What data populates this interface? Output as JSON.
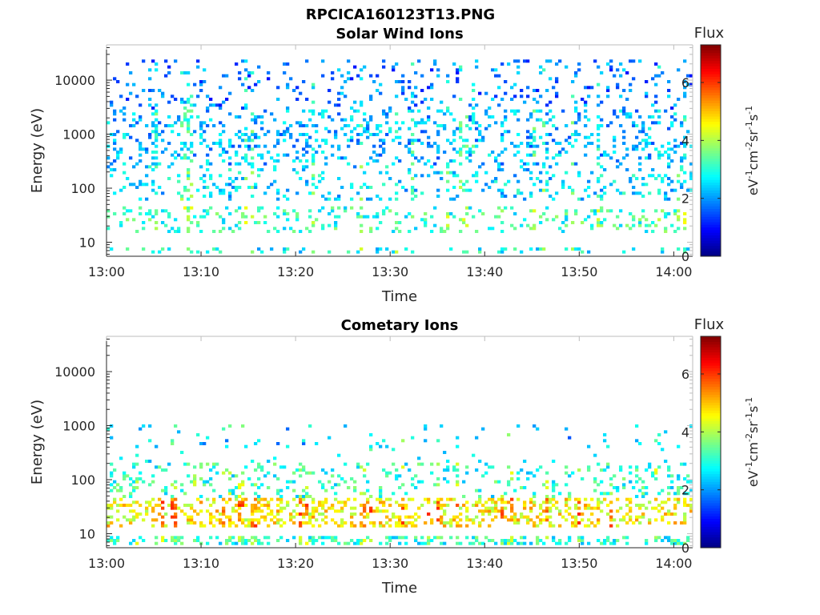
{
  "figure": {
    "filename_title": "RPCICA160123T13.PNG"
  },
  "chart_data": [
    {
      "type": "heatmap",
      "title": "Solar Wind Ions",
      "xlabel": "Time",
      "ylabel": "Energy (eV)",
      "x_range": [
        "13:00",
        "14:02"
      ],
      "x_ticks": [
        "13:00",
        "13:10",
        "13:20",
        "13:30",
        "13:40",
        "13:50",
        "14:00"
      ],
      "y_scale": "log",
      "y_range": [
        5.5,
        45000
      ],
      "y_ticks": [
        10,
        100,
        1000,
        10000
      ],
      "y_tick_labels": [
        "10",
        "100",
        "1000",
        "10000"
      ],
      "colorbar": {
        "label": "Flux",
        "units": "eV-1cm-2sr-1s-1",
        "range": [
          0,
          7.3
        ],
        "ticks": [
          0,
          2,
          4,
          6
        ],
        "colormap": "jet"
      },
      "band_profile": [
        {
          "energy_min": 6,
          "energy_max": 8,
          "flux_typ": 2.8
        },
        {
          "energy_min": 15,
          "energy_max": 45,
          "flux_typ": 3.1
        },
        {
          "energy_min": 60,
          "energy_max": 260,
          "flux_typ": 2.5
        },
        {
          "energy_min": 260,
          "energy_max": 3000,
          "flux_typ": 2.2
        },
        {
          "energy_min": 3000,
          "energy_max": 25000,
          "flux_typ": 1.8
        }
      ]
    },
    {
      "type": "heatmap",
      "title": "Cometary Ions",
      "xlabel": "Time",
      "ylabel": "Energy (eV)",
      "x_range": [
        "13:00",
        "14:02"
      ],
      "x_ticks": [
        "13:00",
        "13:10",
        "13:20",
        "13:30",
        "13:40",
        "13:50",
        "14:00"
      ],
      "y_scale": "log",
      "y_range": [
        5.5,
        45000
      ],
      "y_ticks": [
        10,
        100,
        1000,
        10000
      ],
      "y_tick_labels": [
        "10",
        "100",
        "1000",
        "10000"
      ],
      "colorbar": {
        "label": "Flux",
        "units": "eV-1cm-2sr-1s-1",
        "range": [
          0,
          7.3
        ],
        "ticks": [
          0,
          2,
          4,
          6
        ],
        "colormap": "jet"
      },
      "band_profile": [
        {
          "energy_min": 6,
          "energy_max": 9,
          "flux_typ": 3.0
        },
        {
          "energy_min": 14,
          "energy_max": 45,
          "flux_typ": 4.6
        },
        {
          "energy_min": 45,
          "energy_max": 200,
          "flux_typ": 3.0
        },
        {
          "energy_min": 200,
          "energy_max": 1000,
          "flux_typ": 2.3
        }
      ]
    }
  ]
}
